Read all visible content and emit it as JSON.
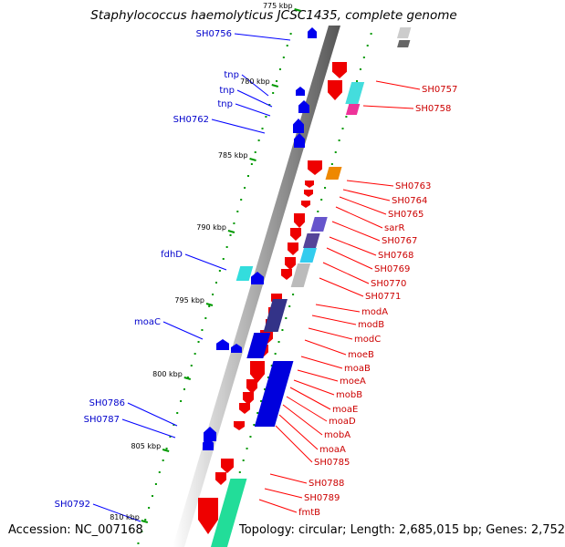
{
  "title": "Staphylococcus haemolyticus JCSC1435, complete genome",
  "accession": "Accession: NC_007168",
  "topology": "Topology: circular; Length: 2,685,015 bp; Genes: 2,752",
  "ticks": [
    {
      "label": "775 kbp"
    },
    {
      "label": "780 kbp"
    },
    {
      "label": "785 kbp"
    },
    {
      "label": "790 kbp"
    },
    {
      "label": "795 kbp"
    },
    {
      "label": "800 kbp"
    },
    {
      "label": "805 kbp"
    },
    {
      "label": "810 kbp"
    }
  ],
  "left_genes": [
    "SH0756",
    "tnp",
    "tnp",
    "tnp",
    "SH0762",
    "fdhD",
    "moaC",
    "SH0786",
    "SH0787",
    "SH0792"
  ],
  "right_genes": [
    "SH0757",
    "SH0758",
    "SH0763",
    "SH0764",
    "SH0765",
    "sarR",
    "SH0767",
    "SH0768",
    "SH0769",
    "SH0770",
    "SH0771",
    "modA",
    "modB",
    "modC",
    "moeB",
    "moaB",
    "moeA",
    "mobB",
    "moaE",
    "moaD",
    "mobA",
    "moaA",
    "SH0785",
    "SH0788",
    "SH0789",
    "fmtB"
  ],
  "colors": {
    "left_label": "#0000cc",
    "right_label": "#cc0000",
    "left_line": "#0000ff",
    "right_line": "#ff0000",
    "tick_dot": "#009900",
    "backbone": "#888888"
  }
}
